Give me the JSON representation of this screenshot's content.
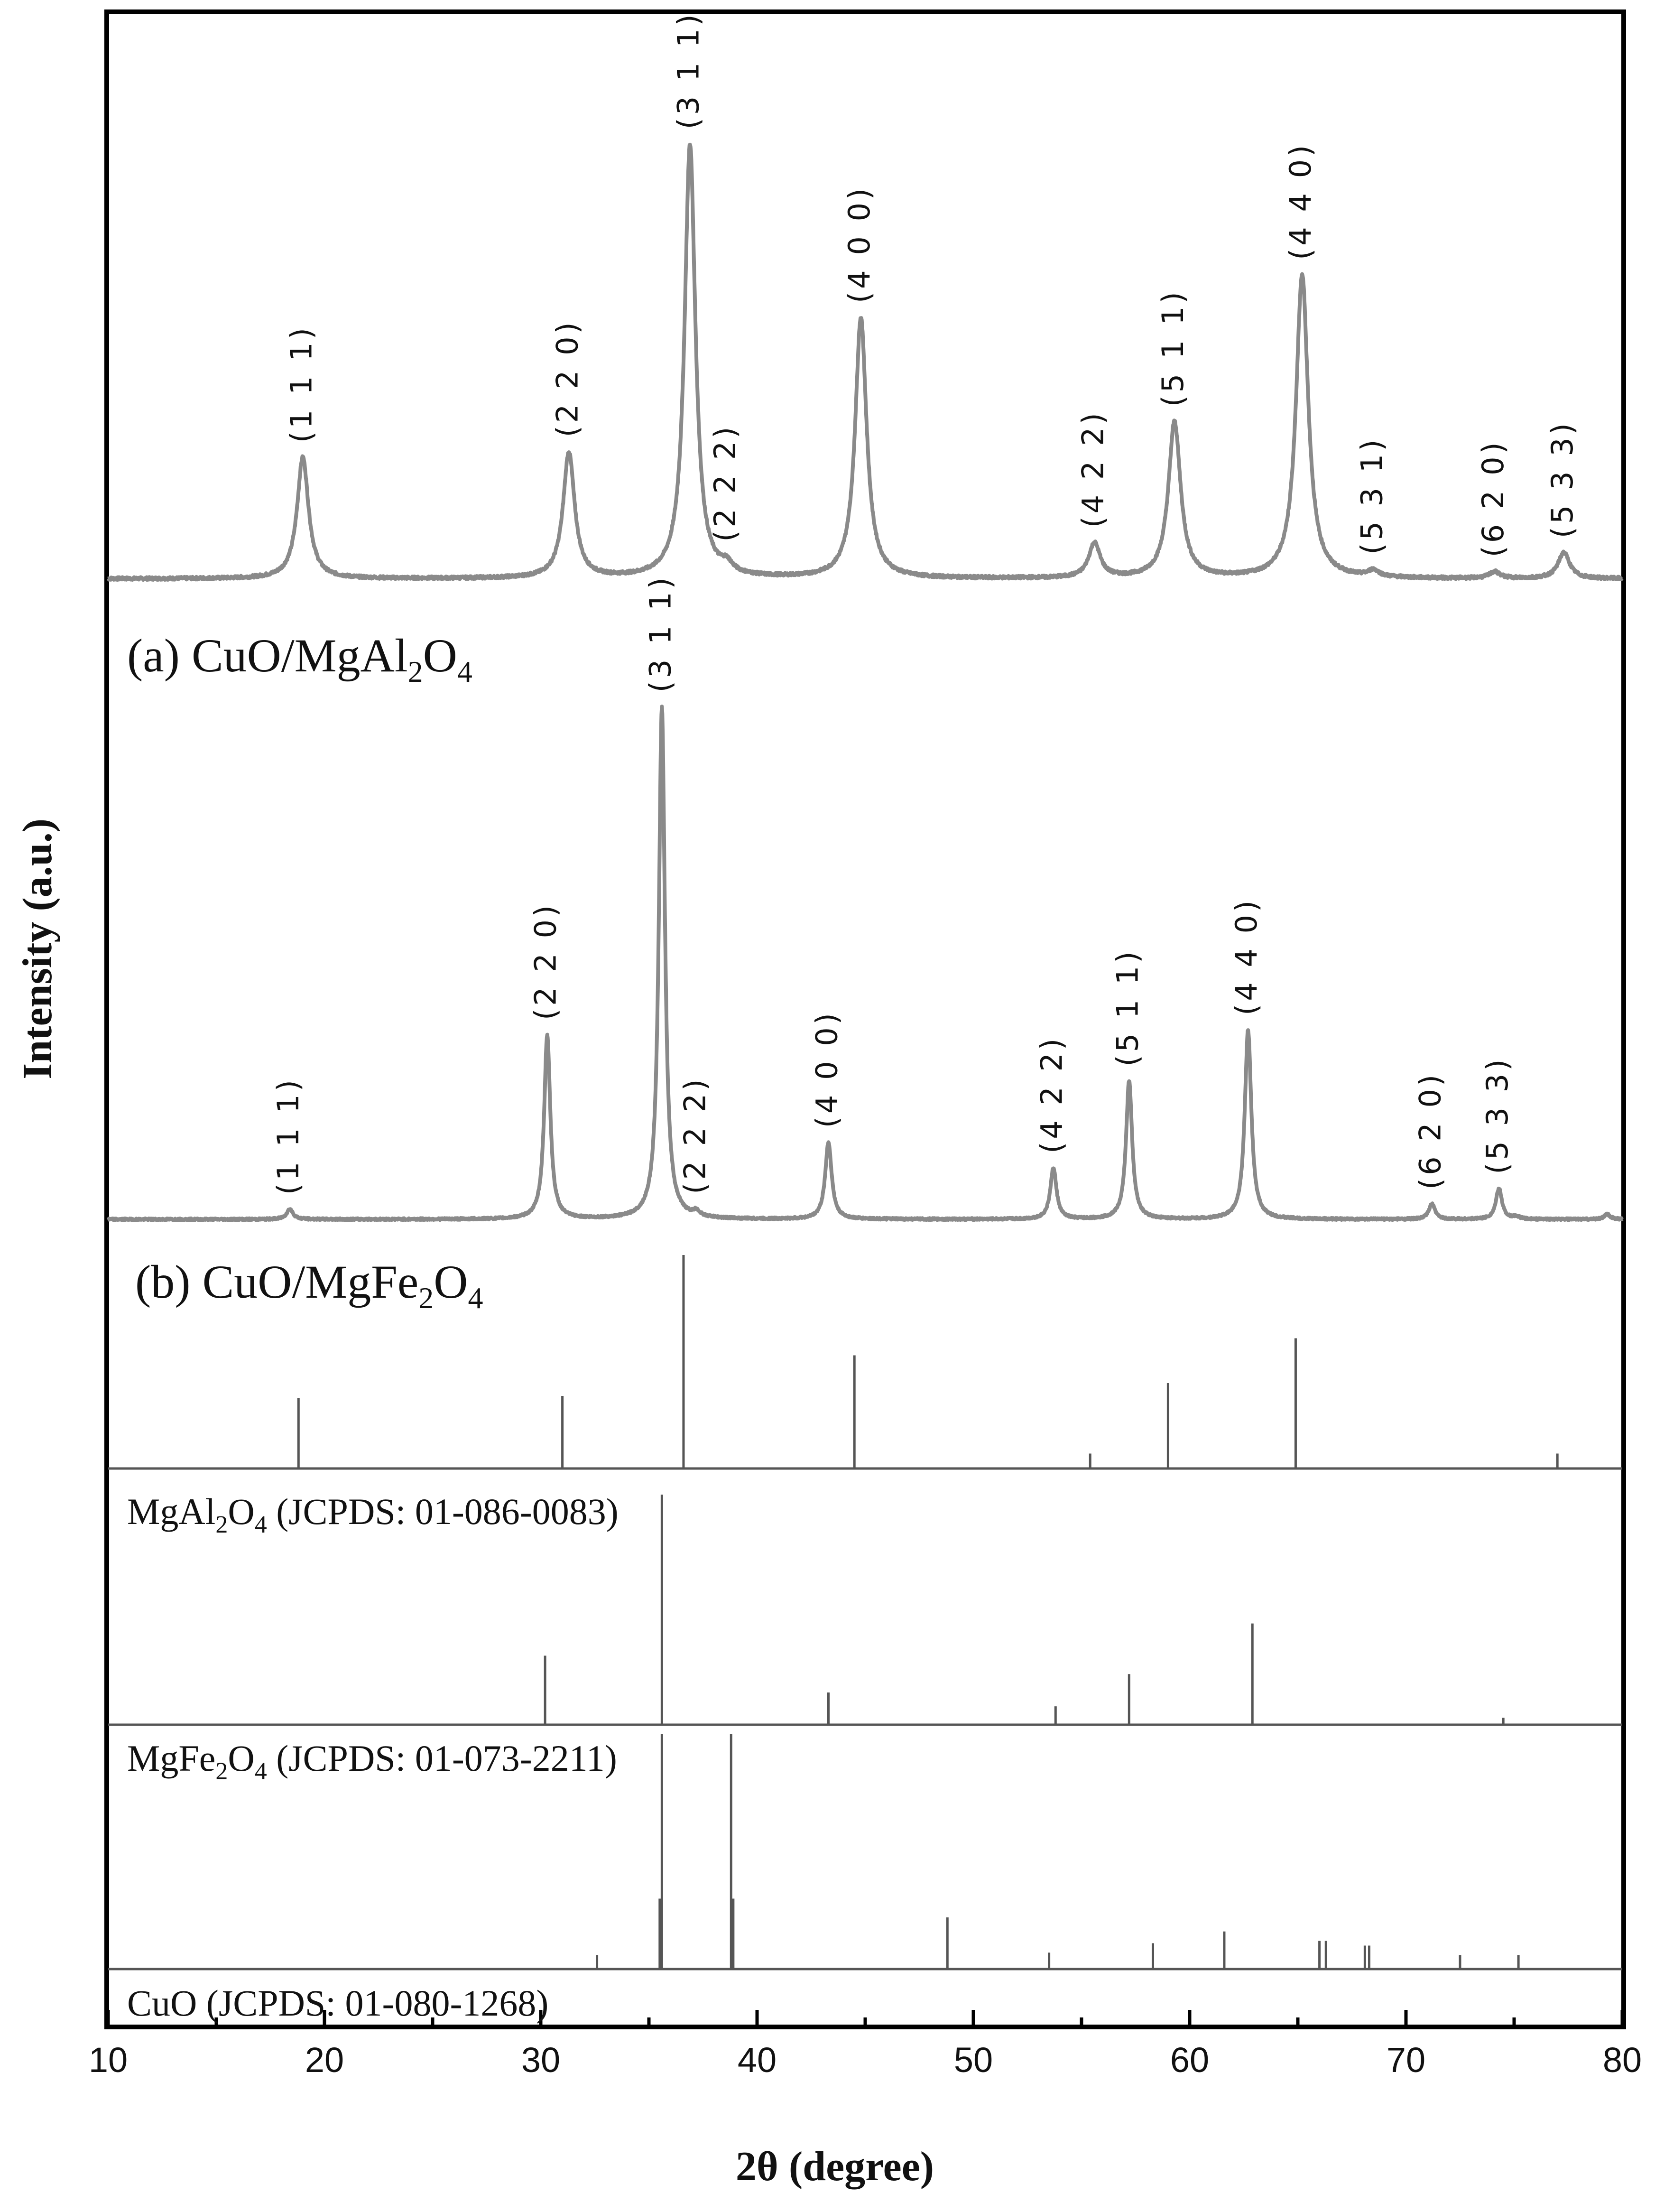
{
  "chart_data": {
    "type": "line",
    "xlabel": "2θ (degree)",
    "ylabel": "Intensity (a.u.)",
    "xlim": [
      10,
      80
    ],
    "xticks": [
      10,
      20,
      30,
      40,
      50,
      60,
      70,
      80
    ],
    "grid": false,
    "line_color": "#8a8a8a",
    "stick_color": "#555555",
    "samples": [
      {
        "name": "(a) CuO/MgAl2O4",
        "label_main": "(a) CuO/MgAl",
        "label_sub1": "2",
        "label_mid": "O",
        "label_sub2": "4",
        "peaks": [
          {
            "x": 19.0,
            "y": 28,
            "w": 0.32,
            "hkl": "(1 1 1)"
          },
          {
            "x": 31.3,
            "y": 29,
            "w": 0.32,
            "hkl": "(2 2 0)"
          },
          {
            "x": 36.9,
            "y": 100,
            "w": 0.3,
            "hkl": "(3 1 1)"
          },
          {
            "x": 38.6,
            "y": 2,
            "w": 0.3,
            "hkl": "(2 2 2)"
          },
          {
            "x": 44.8,
            "y": 60,
            "w": 0.32,
            "hkl": "(4 0 0)"
          },
          {
            "x": 55.6,
            "y": 8,
            "w": 0.32,
            "hkl": "(4 2 2)"
          },
          {
            "x": 59.3,
            "y": 36,
            "w": 0.34,
            "hkl": "(5 1 1)"
          },
          {
            "x": 65.2,
            "y": 70,
            "w": 0.34,
            "hkl": "(4 4 0)"
          },
          {
            "x": 68.5,
            "y": 1.5,
            "w": 0.3,
            "hkl": "(5 3 1)"
          },
          {
            "x": 74.1,
            "y": 1.5,
            "w": 0.3,
            "hkl": "(6 2 0)"
          },
          {
            "x": 77.3,
            "y": 6,
            "w": 0.32,
            "hkl": "(5 3 3)"
          }
        ]
      },
      {
        "name": "(b) CuO/MgFe2O4",
        "label_main": "(b) CuO/MgFe",
        "label_sub1": "2",
        "label_mid": "O",
        "label_sub2": "4",
        "peaks": [
          {
            "x": 18.4,
            "y": 2,
            "w": 0.18,
            "hkl": "(1 1 1)"
          },
          {
            "x": 30.3,
            "y": 36,
            "w": 0.17,
            "hkl": "(2 2 0)"
          },
          {
            "x": 35.6,
            "y": 100,
            "w": 0.17,
            "hkl": "(3 1 1)"
          },
          {
            "x": 37.2,
            "y": 1,
            "w": 0.17,
            "hkl": "(2 2 2)"
          },
          {
            "x": 43.3,
            "y": 15,
            "w": 0.18,
            "hkl": "(4 0 0)"
          },
          {
            "x": 53.7,
            "y": 10,
            "w": 0.17,
            "hkl": "(4 2 2)"
          },
          {
            "x": 57.2,
            "y": 27,
            "w": 0.17,
            "hkl": "(5 1 1)"
          },
          {
            "x": 62.7,
            "y": 37,
            "w": 0.18,
            "hkl": "(4 4 0)"
          },
          {
            "x": 71.2,
            "y": 3,
            "w": 0.17,
            "hkl": "(6 2 0)"
          },
          {
            "x": 74.3,
            "y": 6,
            "w": 0.17,
            "hkl": "(5 3 3)"
          },
          {
            "x": 75.1,
            "y": 0.5,
            "w": 0.17,
            "hkl": ""
          },
          {
            "x": 79.3,
            "y": 1,
            "w": 0.17,
            "hkl": ""
          }
        ]
      }
    ],
    "references": [
      {
        "name": "MgAl2O4 (JCPDS: 01-086-0083)",
        "label_main": "MgAl",
        "label_sub1": "2",
        "label_mid": "O",
        "label_sub2": "4",
        "label_rest": " (JCPDS:  01-086-0083)",
        "x": [
          18.8,
          31.0,
          36.6,
          44.5,
          55.4,
          59.0,
          64.9,
          77.0
        ],
        "y": [
          33,
          34,
          100,
          53,
          7,
          40,
          61,
          7
        ]
      },
      {
        "name": "MgFe2O4 (JCPDS: 01-073-2211)",
        "label_main": "MgFe",
        "label_sub1": "2",
        "label_mid": "O",
        "label_sub2": "4",
        "label_rest": " (JCPDS:  01-073-2211)",
        "x": [
          30.2,
          35.6,
          43.3,
          53.8,
          57.2,
          62.9,
          74.5
        ],
        "y": [
          30,
          100,
          14,
          8,
          22,
          44,
          3
        ]
      },
      {
        "name": "CuO (JCPDS: 01-080-1268)",
        "label_main": "CuO",
        "label_sub1": "",
        "label_mid": "",
        "label_sub2": "",
        "label_rest": " (JCPDS:  01-080-1268)",
        "x": [
          32.6,
          35.5,
          35.6,
          38.8,
          38.9,
          48.8,
          53.5,
          58.3,
          61.6,
          66.0,
          66.3,
          68.1,
          68.3,
          72.5,
          75.2
        ],
        "y": [
          6,
          30,
          100,
          100,
          30,
          22,
          7,
          11,
          16,
          12,
          12,
          10,
          10,
          6,
          6
        ]
      }
    ]
  }
}
